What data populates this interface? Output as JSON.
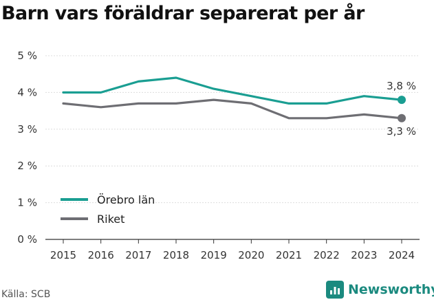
{
  "title": "Barn vars föräldrar separerat per år",
  "source": "Källa: SCB",
  "brand": {
    "name": "Newsworthy",
    "icon": "bar-chart-logo-icon"
  },
  "colors": {
    "orebro": "#1a9e92",
    "riket": "#6e6e73",
    "grid": "#dcdcdc",
    "axis": "#333333"
  },
  "chart_data": {
    "type": "line",
    "x": [
      2015,
      2016,
      2017,
      2018,
      2019,
      2020,
      2021,
      2022,
      2023,
      2024
    ],
    "y_ticks": [
      "0 %",
      "1 %",
      "2 %",
      "3 %",
      "4 %",
      "5 %"
    ],
    "ylim": [
      0,
      5
    ],
    "grid": true,
    "legend_position": "bottom-left",
    "series": [
      {
        "name": "Örebro län",
        "color": "#1a9e92",
        "values": [
          4.0,
          4.0,
          4.3,
          4.4,
          4.1,
          3.9,
          3.7,
          3.7,
          3.9,
          3.8
        ],
        "end_label": "3,8 %"
      },
      {
        "name": "Riket",
        "color": "#6e6e73",
        "values": [
          3.7,
          3.6,
          3.7,
          3.7,
          3.8,
          3.7,
          3.3,
          3.3,
          3.4,
          3.3
        ],
        "end_label": "3,3 %"
      }
    ]
  }
}
